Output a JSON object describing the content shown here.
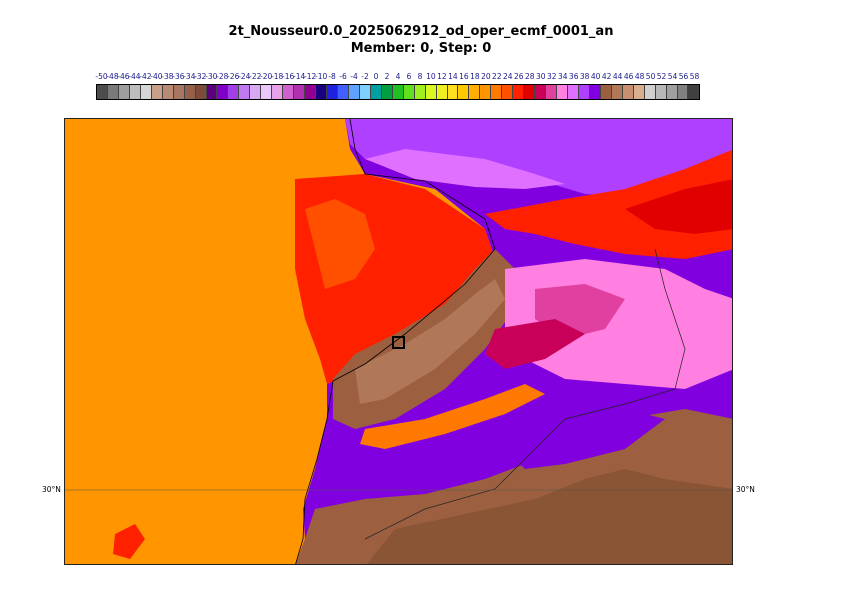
{
  "title": {
    "line1": "2t_Nousseur0.0_2025062912_od_oper_ecmf_0001_an",
    "line2": "Member: 0, Step: 0"
  },
  "legend": {
    "labels": [
      "-50",
      "-48",
      "-46",
      "-44",
      "-42",
      "-40",
      "-38",
      "-36",
      "-34",
      "-32",
      "-30",
      "-28",
      "-26",
      "-24",
      "-22",
      "-20",
      "-18",
      "-16",
      "-14",
      "-12",
      "-10",
      "-8",
      "-6",
      "-4",
      "-2",
      "0",
      "2",
      "4",
      "6",
      "8",
      "10",
      "12",
      "14",
      "16",
      "18",
      "20",
      "22",
      "24",
      "26",
      "28",
      "30",
      "32",
      "34",
      "36",
      "38",
      "40",
      "42",
      "44",
      "46",
      "48",
      "50",
      "52",
      "54",
      "56",
      "58"
    ],
    "colors": [
      "#4d4d4d",
      "#7a7a7a",
      "#9e9e9e",
      "#bdbdbd",
      "#d6d6d6",
      "#c8a08a",
      "#b98a74",
      "#a87560",
      "#965f4c",
      "#7e4a3a",
      "#5c0080",
      "#8000c8",
      "#a040e6",
      "#c07af0",
      "#d8a8f5",
      "#e8c8f8",
      "#e8a0e8",
      "#d060d0",
      "#b030b0",
      "#900090",
      "#1a0080",
      "#2020e0",
      "#4060ff",
      "#60a0ff",
      "#80d0ff",
      "#00a0a0",
      "#00a040",
      "#20c020",
      "#60e020",
      "#a0f020",
      "#d8f820",
      "#f0f020",
      "#ffe020",
      "#ffc800",
      "#ffb000",
      "#ff9600",
      "#ff7800",
      "#ff5000",
      "#ff2000",
      "#e00000",
      "#c8005a",
      "#e040a0",
      "#ff80e0",
      "#e070ff",
      "#b040ff",
      "#8000e0",
      "#9c6040",
      "#b07858",
      "#c89070",
      "#d8b090",
      "#d0d0d0",
      "#b8b8b8",
      "#a0a0a0",
      "#808080",
      "#404040"
    ]
  },
  "map": {
    "lat_label": "30°N",
    "marker": "Nousseur"
  }
}
